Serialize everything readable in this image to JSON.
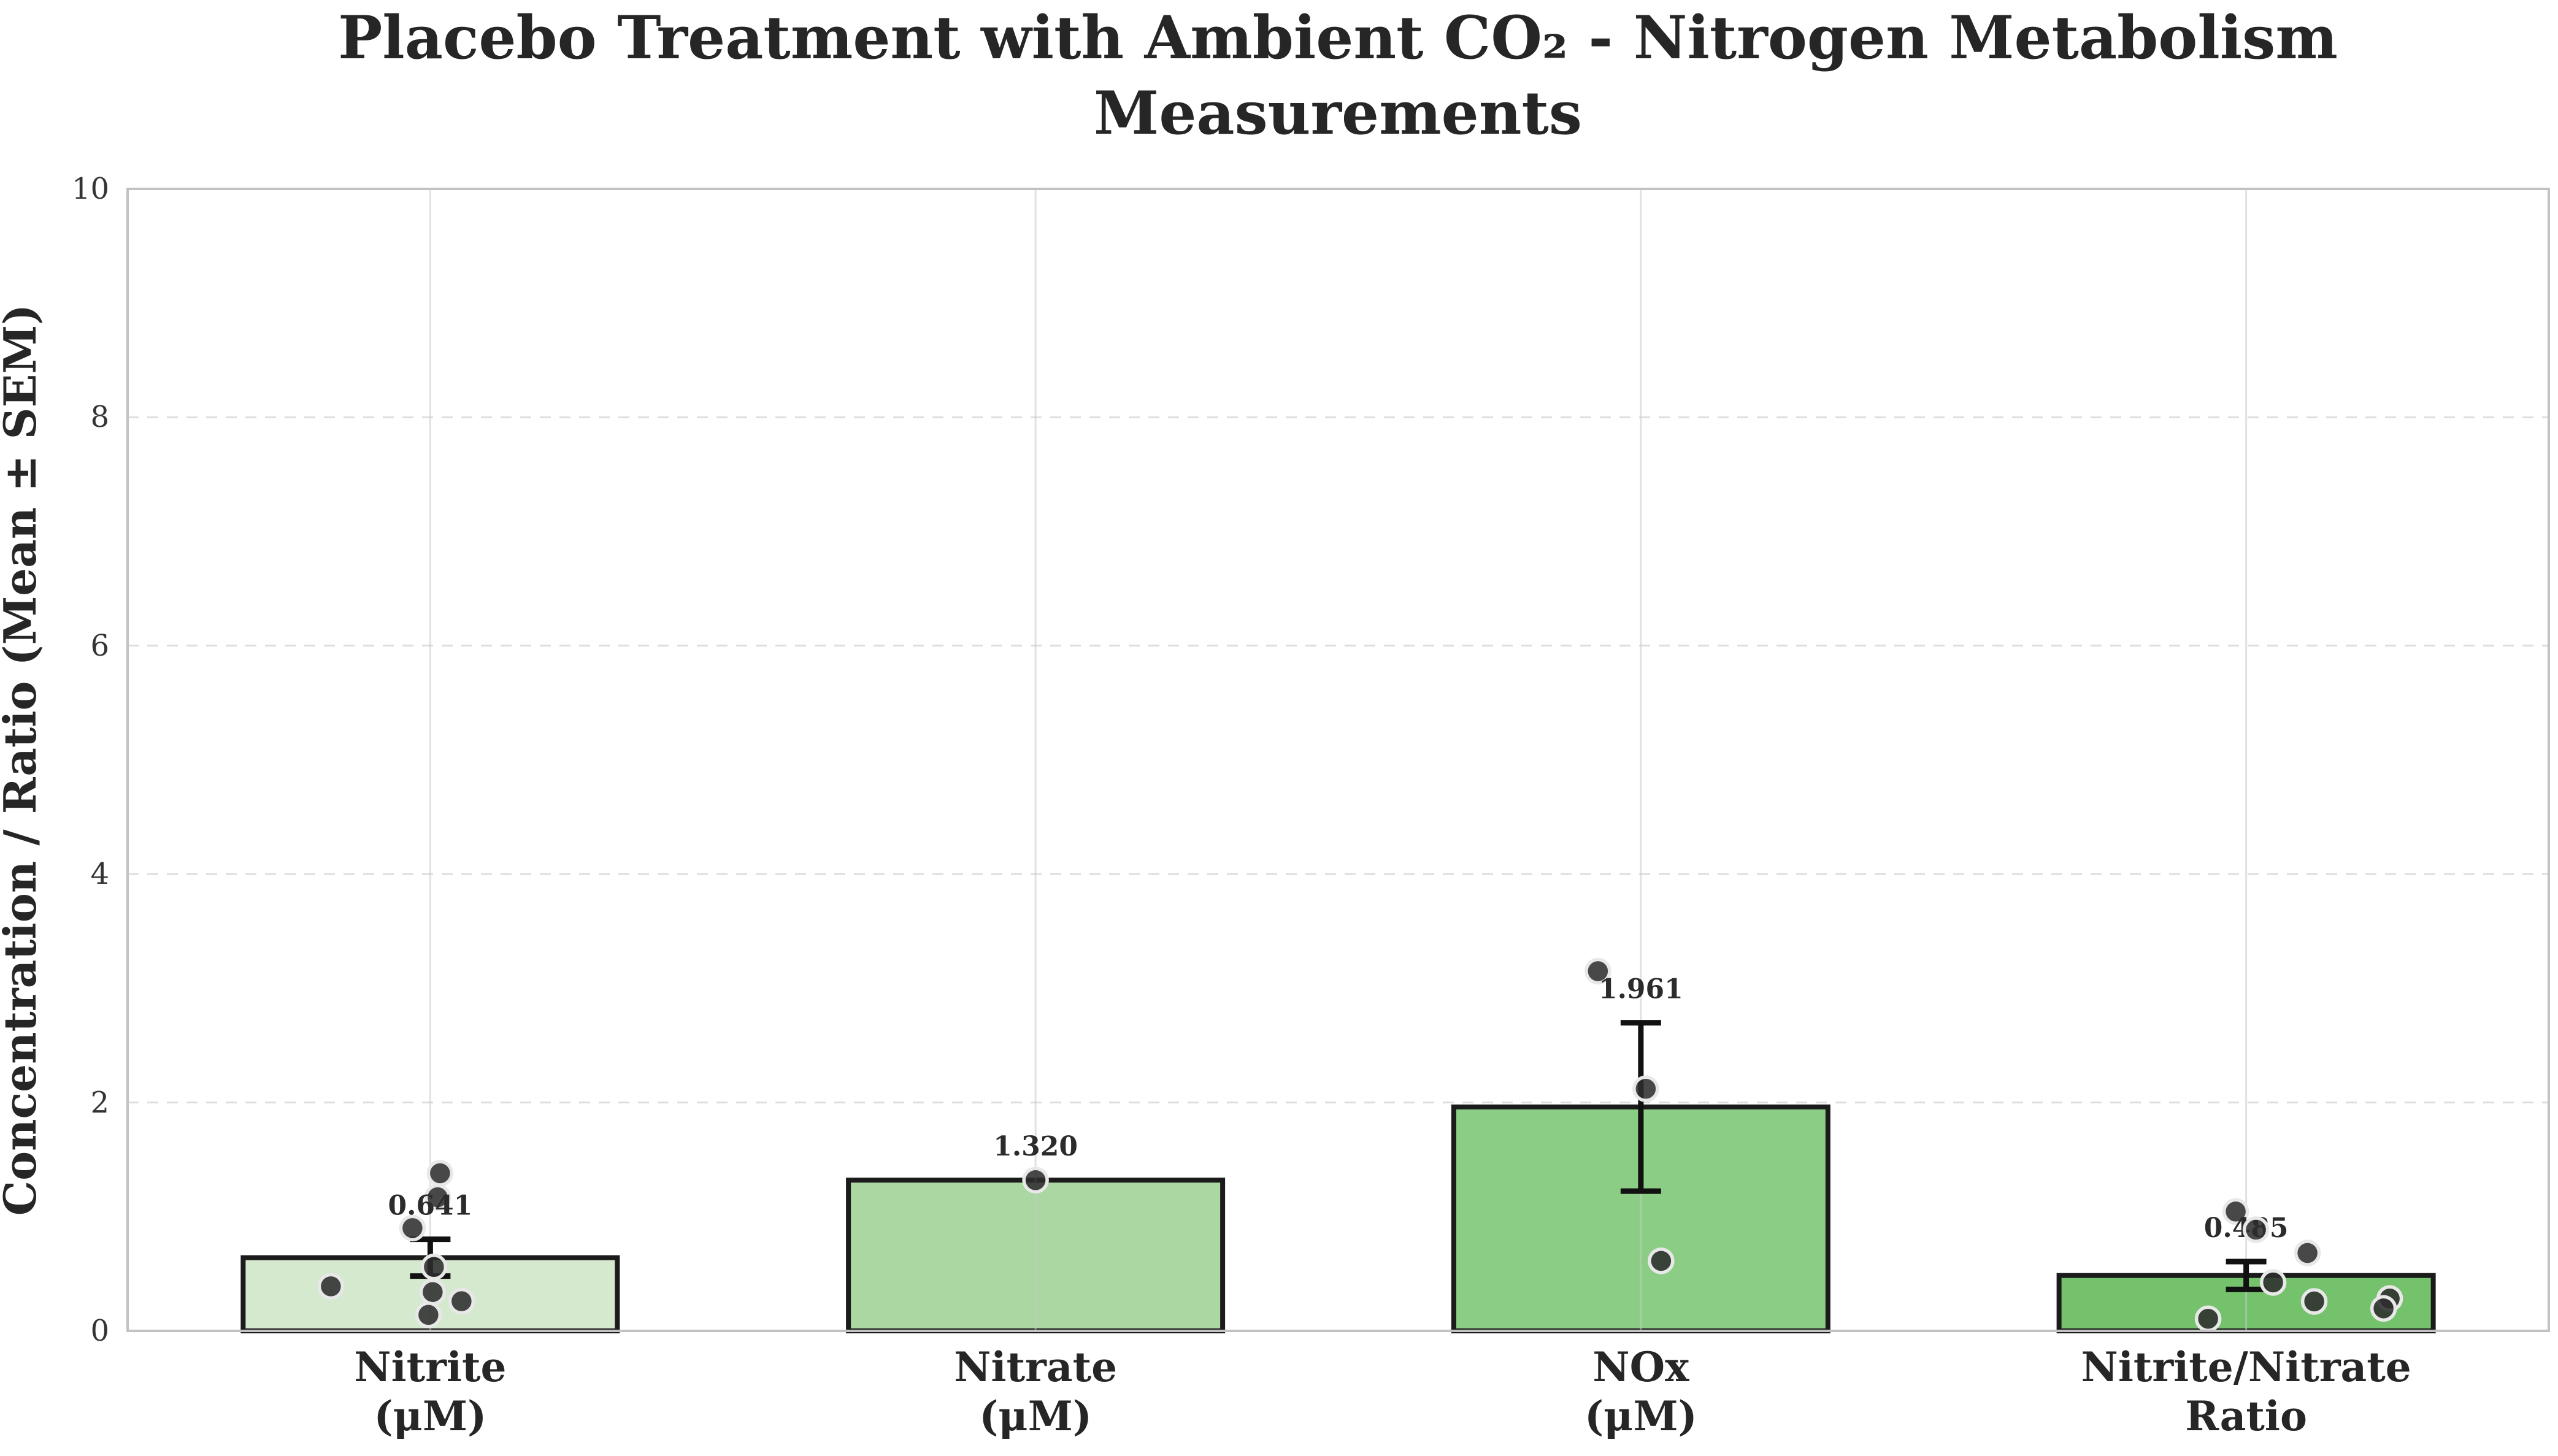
{
  "title_lines": [
    "Placebo Treatment with Ambient CO₂ - Nitrogen Metabolism",
    "Measurements"
  ],
  "chart_data": {
    "type": "bar",
    "title": "Placebo Treatment with Ambient CO₂ - Nitrogen Metabolism Measurements",
    "xlabel": "",
    "ylabel": "Concentration / Ratio (Mean ± SEM)",
    "ylim": [
      0,
      10
    ],
    "yticks": [
      0,
      2,
      4,
      6,
      8,
      10
    ],
    "ytick_labels": [
      "0",
      "2",
      "4",
      "6",
      "8",
      "10"
    ],
    "grid": {
      "horizontal": "dashed light gray at 2,4,6,8",
      "vertical": "solid light gray at category centers"
    },
    "legend": "none",
    "categories": [
      "Nitrite (μM)",
      "Nitrate (μM)",
      "NOx (μM)",
      "Nitrite/Nitrate Ratio"
    ],
    "categories_lines": [
      [
        "Nitrite",
        "(μM)"
      ],
      [
        "Nitrate",
        "(μM)"
      ],
      [
        "NOx",
        "(μM)"
      ],
      [
        "Nitrite/Nitrate",
        "Ratio"
      ]
    ],
    "series": [
      {
        "name": "Mean ± SEM",
        "values": [
          0.641,
          1.32,
          1.961,
          0.485
        ]
      }
    ],
    "sem": [
      0.161,
      0,
      0.737,
      0.122
    ],
    "value_labels": [
      "0.641",
      "1.320",
      "1.961",
      "0.485"
    ],
    "bar_colors": [
      "#d5e9ce",
      "#aad7a2",
      "#8ccd85",
      "#74c26c"
    ],
    "bar_edge_color": "#1b1b1b",
    "error_bar_color": "#111111",
    "point_style": {
      "fill": "#2d2d2d",
      "stroke": "#e8e8e8"
    },
    "points": [
      [
        {
          "dx": 16,
          "v": 1.38
        },
        {
          "dx": 12,
          "v": 1.17
        },
        {
          "dx": -29,
          "v": 0.9
        },
        {
          "dx": 6,
          "v": 0.56
        },
        {
          "dx": -162,
          "v": 0.39
        },
        {
          "dx": 4,
          "v": 0.34
        },
        {
          "dx": 51,
          "v": 0.26
        },
        {
          "dx": -3,
          "v": 0.14
        }
      ],
      [
        {
          "dx": 0,
          "v": 1.32
        }
      ],
      [
        {
          "dx": -70,
          "v": 3.15
        },
        {
          "dx": 8,
          "v": 2.12
        },
        {
          "dx": 33,
          "v": 0.613
        }
      ],
      [
        {
          "dx": -17,
          "v": 1.045
        },
        {
          "dx": 16,
          "v": 0.886,
          "above_label": true
        },
        {
          "dx": 100,
          "v": 0.682
        },
        {
          "dx": 44,
          "v": 0.424
        },
        {
          "dx": 234,
          "v": 0.283
        },
        {
          "dx": 111,
          "v": 0.258
        },
        {
          "dx": 224,
          "v": 0.197
        },
        {
          "dx": -62,
          "v": 0.106
        }
      ]
    ]
  }
}
